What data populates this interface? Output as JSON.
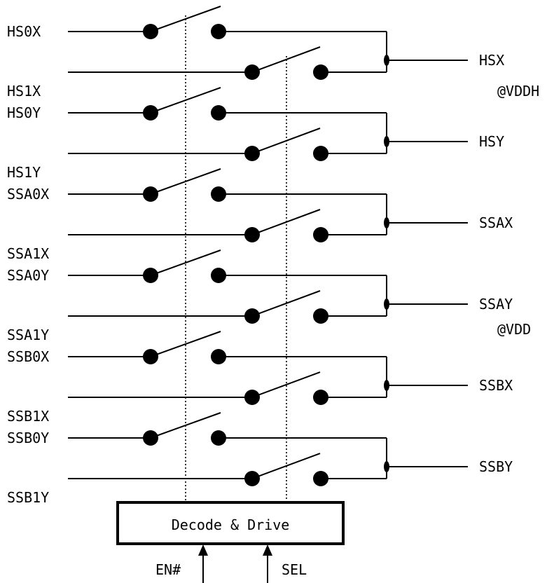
{
  "channels": [
    {
      "in0": "HS0X",
      "in1": "HS1X",
      "out": "HSX"
    },
    {
      "in0": "HS0Y",
      "in1": "HS1Y",
      "out": "HSY"
    },
    {
      "in0": "SSA0X",
      "in1": "SSA1X",
      "out": "SSAX"
    },
    {
      "in0": "SSA0Y",
      "in1": "SSA1Y",
      "out": "SSAY"
    },
    {
      "in0": "SSB0X",
      "in1": "SSB1X",
      "out": "SSBX"
    },
    {
      "in0": "SSB0Y",
      "in1": "SSB1Y",
      "out": "SSBY"
    }
  ],
  "supply_labels": {
    "upper": "@VDDH",
    "lower": "@VDD"
  },
  "decoder": {
    "label": "Decode & Drive"
  },
  "control_inputs": {
    "enable": "EN#",
    "select": "SEL"
  }
}
